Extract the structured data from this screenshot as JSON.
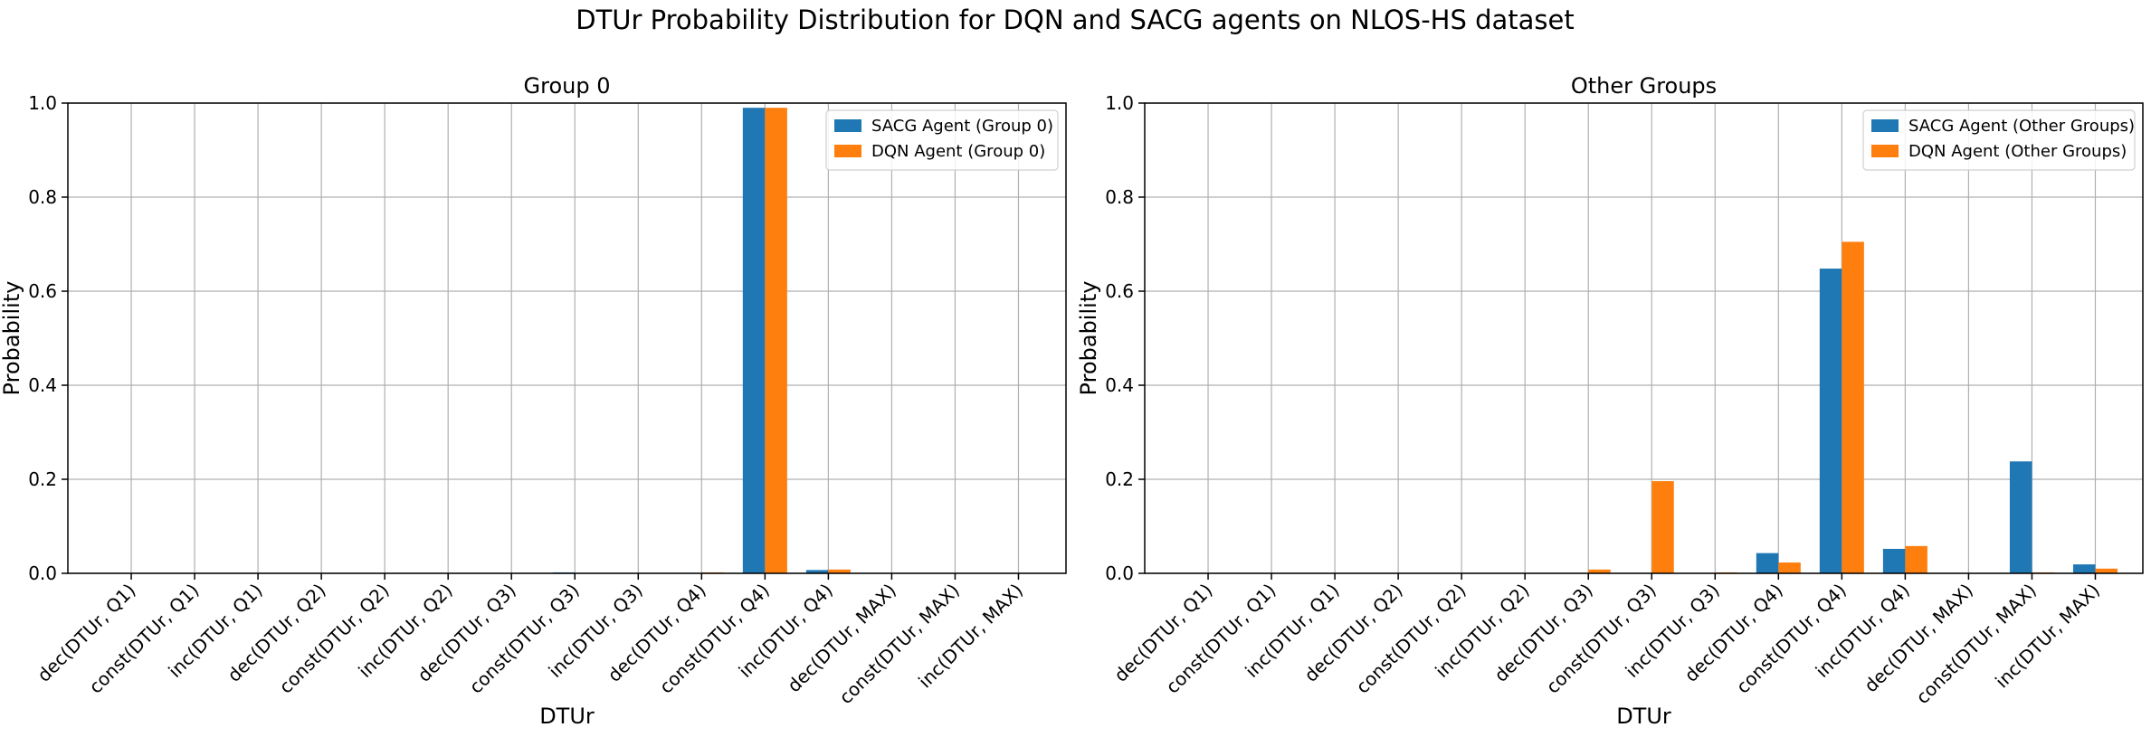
{
  "figure": {
    "title": "DTUr Probability Distribution for DQN and SACG agents on NLOS-HS dataset"
  },
  "colors": {
    "sacg": "#1f77b4",
    "dqn": "#ff7f0e",
    "grid": "#b0b0b0",
    "axes": "#000000"
  },
  "chart_data": [
    {
      "type": "bar",
      "title": "Group 0",
      "xlabel": "DTUr",
      "ylabel": "Probability",
      "ylim": [
        0,
        1.0
      ],
      "yticks": [
        "0.0",
        "0.2",
        "0.4",
        "0.6",
        "0.8",
        "1.0"
      ],
      "grid": true,
      "legend": "upper right",
      "categories": [
        "dec(DTUr, Q1)",
        "const(DTUr, Q1)",
        "inc(DTUr, Q1)",
        "dec(DTUr, Q2)",
        "const(DTUr, Q2)",
        "inc(DTUr, Q2)",
        "dec(DTUr, Q3)",
        "const(DTUr, Q3)",
        "inc(DTUr, Q3)",
        "dec(DTUr, Q4)",
        "const(DTUr, Q4)",
        "inc(DTUr, Q4)",
        "dec(DTUr, MAX)",
        "const(DTUr, MAX)",
        "inc(DTUr, MAX)"
      ],
      "series": [
        {
          "name": "SACG Agent (Group 0)",
          "color": "#1f77b4",
          "values": [
            0,
            0,
            0,
            0,
            0,
            0,
            0,
            0.002,
            0.001,
            0.001,
            0.99,
            0.007,
            0,
            0,
            0.001
          ]
        },
        {
          "name": "DQN Agent (Group 0)",
          "color": "#ff7f0e",
          "values": [
            0,
            0,
            0,
            0,
            0,
            0,
            0,
            0,
            0,
            0.002,
            0.99,
            0.008,
            0,
            0,
            0.001
          ]
        }
      ]
    },
    {
      "type": "bar",
      "title": "Other Groups",
      "xlabel": "DTUr",
      "ylabel": "Probability",
      "ylim": [
        0,
        1.0
      ],
      "yticks": [
        "0.0",
        "0.2",
        "0.4",
        "0.6",
        "0.8",
        "1.0"
      ],
      "grid": true,
      "legend": "upper right",
      "categories": [
        "dec(DTUr, Q1)",
        "const(DTUr, Q1)",
        "inc(DTUr, Q1)",
        "dec(DTUr, Q2)",
        "const(DTUr, Q2)",
        "inc(DTUr, Q2)",
        "dec(DTUr, Q3)",
        "const(DTUr, Q3)",
        "inc(DTUr, Q3)",
        "dec(DTUr, Q4)",
        "const(DTUr, Q4)",
        "inc(DTUr, Q4)",
        "dec(DTUr, MAX)",
        "const(DTUr, MAX)",
        "inc(DTUr, MAX)"
      ],
      "series": [
        {
          "name": "SACG Agent (Other Groups)",
          "color": "#1f77b4",
          "values": [
            0,
            0,
            0,
            0,
            0,
            0,
            0,
            0,
            0,
            0.043,
            0.648,
            0.052,
            0,
            0.238,
            0.019
          ]
        },
        {
          "name": "DQN Agent (Other Groups)",
          "color": "#ff7f0e",
          "values": [
            0,
            0,
            0,
            0,
            0,
            0,
            0.008,
            0.196,
            0.002,
            0.023,
            0.705,
            0.058,
            0,
            0.002,
            0.01
          ]
        }
      ]
    }
  ]
}
